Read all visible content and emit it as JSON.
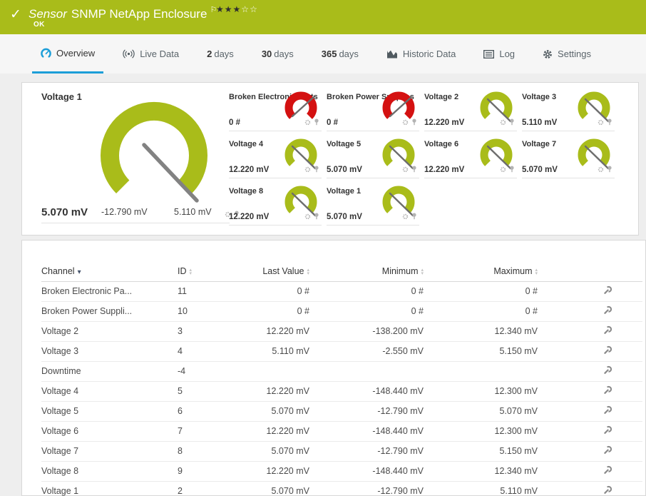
{
  "colors": {
    "ok_green": "#a9bc1a",
    "alarm_red": "#d41111",
    "accent_blue": "#1c9ed8"
  },
  "header": {
    "type_label": "Sensor",
    "title": "SNMP NetApp Enclosure",
    "status": "OK",
    "priority": {
      "filled": 3,
      "total": 5
    }
  },
  "tabs": [
    {
      "label": "Overview",
      "icon": "gauge-icon",
      "active": true
    },
    {
      "label": "Live Data",
      "icon": "live-icon"
    },
    {
      "bold": "2",
      "rest": "days",
      "label": "2 days"
    },
    {
      "bold": "30",
      "rest": "days",
      "label": "30 days"
    },
    {
      "bold": "365",
      "rest": "days",
      "label": "365 days"
    },
    {
      "label": "Historic Data",
      "icon": "chart-icon"
    },
    {
      "label": "Log",
      "icon": "log-icon"
    },
    {
      "label": "Settings",
      "icon": "gear-icon"
    }
  ],
  "gauges": {
    "primary": {
      "name": "Voltage 1",
      "value": "5.070 mV",
      "min": "-12.790 mV",
      "max": "5.110 mV",
      "status": "ok"
    },
    "tiles": [
      {
        "name": "Broken Electronic Parts",
        "value": "0 #",
        "status": "alarm"
      },
      {
        "name": "Broken Power Supplies",
        "value": "0 #",
        "status": "alarm"
      },
      {
        "name": "Voltage 2",
        "value": "12.220 mV",
        "status": "ok"
      },
      {
        "name": "Voltage 3",
        "value": "5.110 mV",
        "status": "ok"
      },
      {
        "name": "Voltage 4",
        "value": "12.220 mV",
        "status": "ok"
      },
      {
        "name": "Voltage 5",
        "value": "5.070 mV",
        "status": "ok"
      },
      {
        "name": "Voltage 6",
        "value": "12.220 mV",
        "status": "ok"
      },
      {
        "name": "Voltage 7",
        "value": "5.070 mV",
        "status": "ok"
      },
      {
        "name": "Voltage 8",
        "value": "12.220 mV",
        "status": "ok"
      },
      {
        "name": "Voltage 1",
        "value": "5.070 mV",
        "status": "ok"
      }
    ]
  },
  "channels_table": {
    "columns": [
      {
        "label": "Channel",
        "sort": "desc",
        "align": "left"
      },
      {
        "label": "ID",
        "align": "left"
      },
      {
        "label": "Last Value",
        "align": "right"
      },
      {
        "label": "Minimum",
        "align": "right"
      },
      {
        "label": "Maximum",
        "align": "right"
      }
    ],
    "rows": [
      {
        "channel": "Broken Electronic Pa...",
        "id": "11",
        "last": "0 #",
        "min": "0 #",
        "max": "0 #"
      },
      {
        "channel": "Broken Power Suppli...",
        "id": "10",
        "last": "0 #",
        "min": "0 #",
        "max": "0 #"
      },
      {
        "channel": "Voltage 2",
        "id": "3",
        "last": "12.220 mV",
        "min": "-138.200 mV",
        "max": "12.340 mV"
      },
      {
        "channel": "Voltage 3",
        "id": "4",
        "last": "5.110 mV",
        "min": "-2.550 mV",
        "max": "5.150 mV"
      },
      {
        "channel": "Downtime",
        "id": "-4",
        "last": "",
        "min": "",
        "max": ""
      },
      {
        "channel": "Voltage 4",
        "id": "5",
        "last": "12.220 mV",
        "min": "-148.440 mV",
        "max": "12.300 mV"
      },
      {
        "channel": "Voltage 5",
        "id": "6",
        "last": "5.070 mV",
        "min": "-12.790 mV",
        "max": "5.070 mV"
      },
      {
        "channel": "Voltage 6",
        "id": "7",
        "last": "12.220 mV",
        "min": "-148.440 mV",
        "max": "12.300 mV"
      },
      {
        "channel": "Voltage 7",
        "id": "8",
        "last": "5.070 mV",
        "min": "-12.790 mV",
        "max": "5.150 mV"
      },
      {
        "channel": "Voltage 8",
        "id": "9",
        "last": "12.220 mV",
        "min": "-148.440 mV",
        "max": "12.340 mV"
      },
      {
        "channel": "Voltage 1",
        "id": "2",
        "last": "5.070 mV",
        "min": "-12.790 mV",
        "max": "5.110 mV"
      }
    ]
  }
}
